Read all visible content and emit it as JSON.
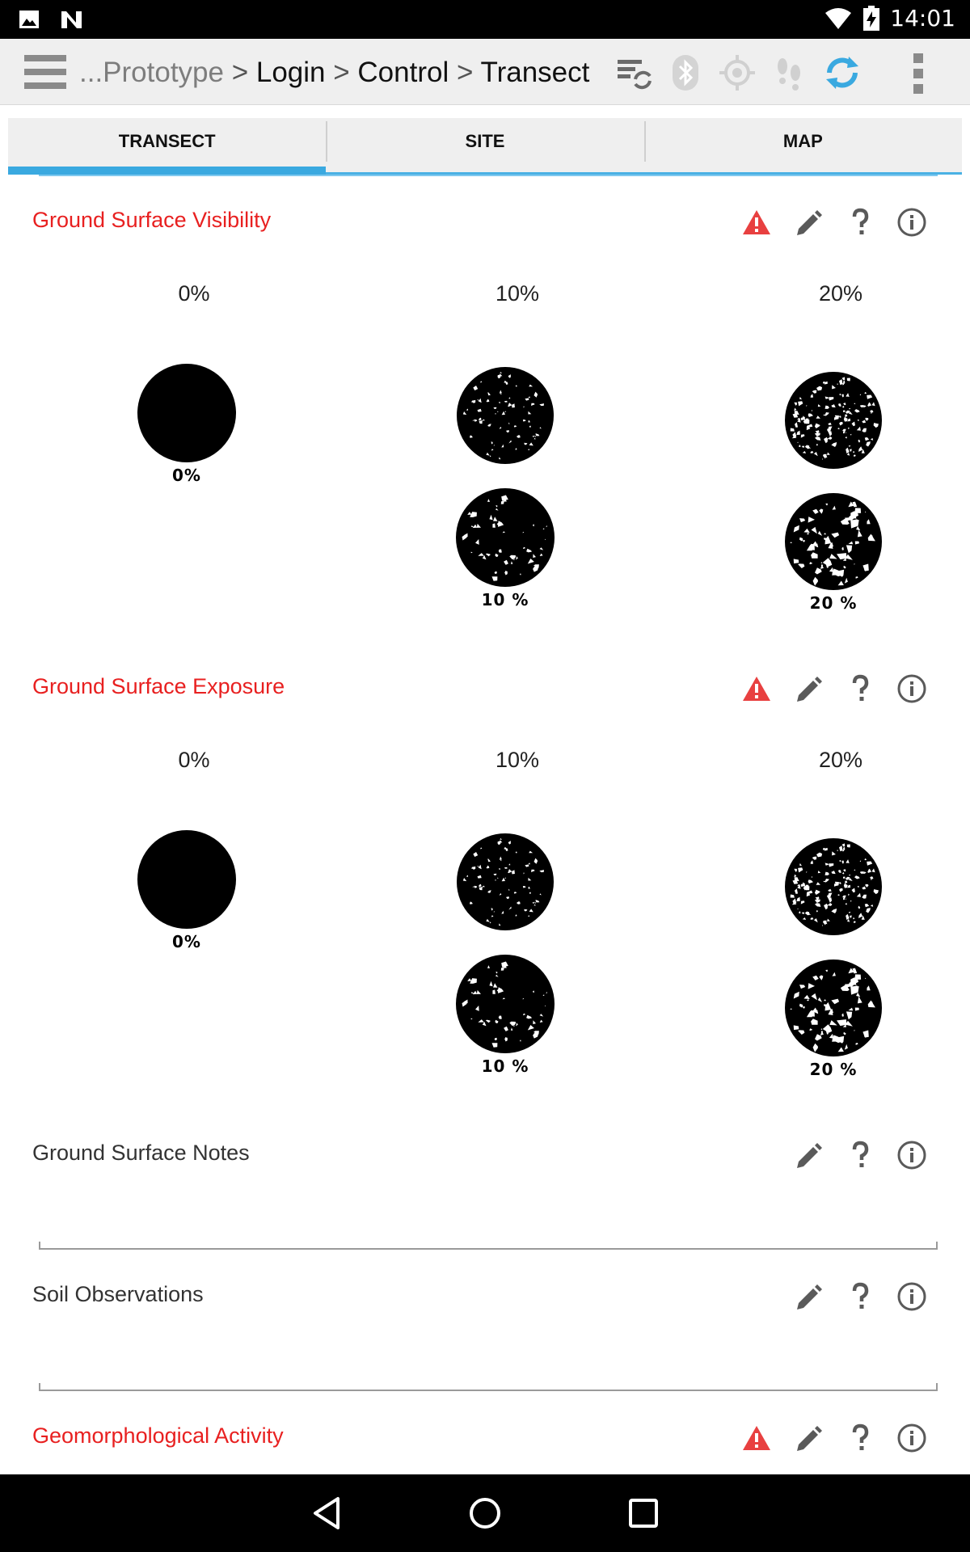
{
  "status_bar": {
    "time": "14:01",
    "left_icons": [
      "image-icon",
      "n-notification-icon"
    ],
    "right_icons": [
      "wifi-icon",
      "battery-charging-icon"
    ]
  },
  "action_bar": {
    "breadcrumb": {
      "dim": "...Prototype",
      "sep1": " > ",
      "item1": "Login",
      "sep2": " > ",
      "item2": "Control",
      "sep3": " > ",
      "item3": "Transect"
    },
    "icons": [
      "sync-list-icon",
      "bluetooth-icon",
      "gps-icon",
      "footsteps-icon",
      "refresh-icon",
      "overflow-menu-icon"
    ],
    "accent": "#3aa9e0"
  },
  "tabs": [
    {
      "label": "TRANSECT",
      "active": true
    },
    {
      "label": "SITE",
      "active": false
    },
    {
      "label": "MAP",
      "active": false
    }
  ],
  "fields": {
    "visibility": {
      "label": "Ground Surface Visibility",
      "required": true,
      "options": [
        {
          "label": "0%",
          "captions": [
            "0%"
          ]
        },
        {
          "label": "10%",
          "captions": [
            "10 %"
          ]
        },
        {
          "label": "20%",
          "captions": [
            "20 %"
          ]
        }
      ]
    },
    "exposure": {
      "label": "Ground Surface Exposure",
      "required": true,
      "options": [
        {
          "label": "0%",
          "captions": [
            "0%"
          ]
        },
        {
          "label": "10%",
          "captions": [
            "10 %"
          ]
        },
        {
          "label": "20%",
          "captions": [
            "20 %"
          ]
        }
      ]
    },
    "notes": {
      "label": "Ground Surface Notes",
      "value": ""
    },
    "soil": {
      "label": "Soil Observations",
      "value": ""
    },
    "geomorph": {
      "label": "Geomorphological Activity",
      "required": true
    }
  },
  "colors": {
    "required_label": "#e82020",
    "warning": "#e84040",
    "tool_icon": "#5a5a5a"
  }
}
